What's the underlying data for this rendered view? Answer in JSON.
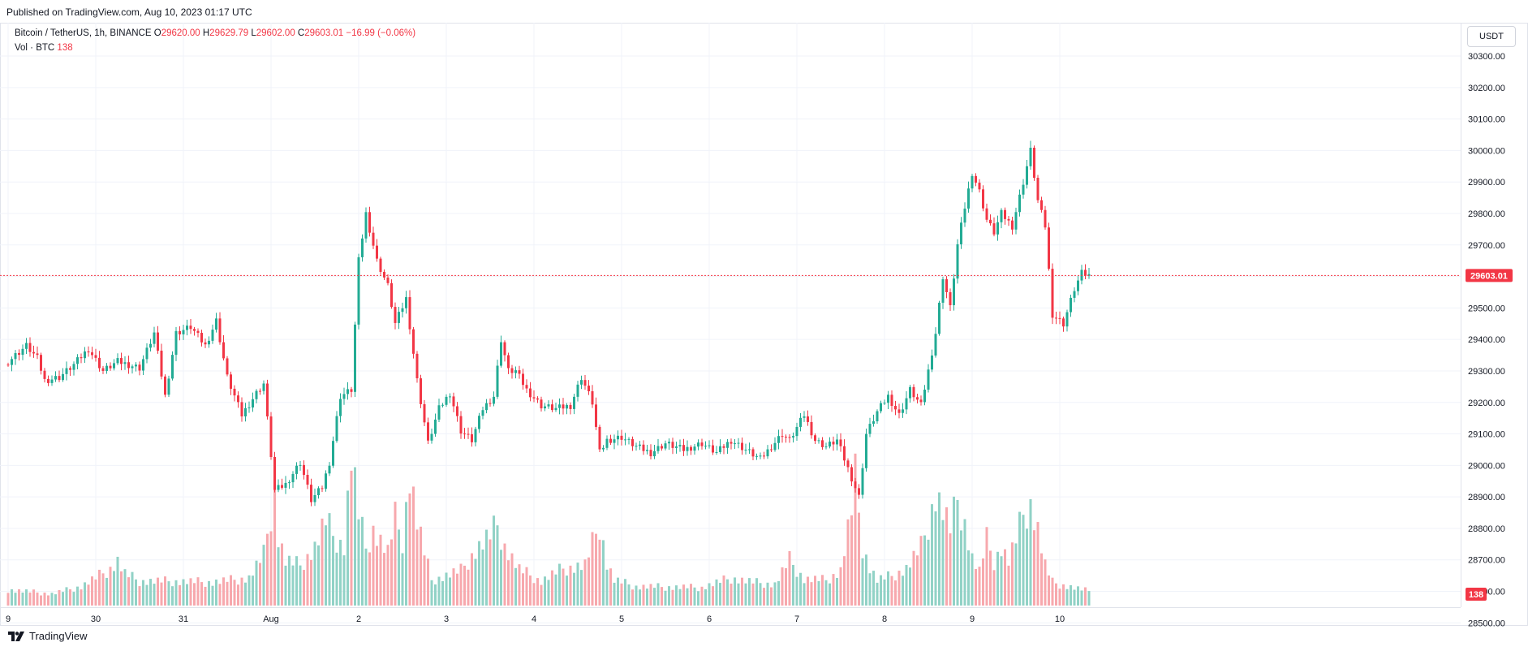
{
  "header": {
    "published": "Published on TradingView.com, Aug 10, 2023 01:17 UTC"
  },
  "legend": {
    "symbol": "Bitcoin / TetherUS, 1h, BINANCE",
    "o_label": "O",
    "o": "29620.00",
    "h_label": "H",
    "h": "29629.79",
    "l_label": "L",
    "l": "29602.00",
    "c_label": "C",
    "c": "29603.01",
    "change": "−16.99 (−0.06%)",
    "vol_label": "Vol · BTC",
    "vol_value": "138"
  },
  "currency_button": "USDT",
  "footer": {
    "brand": "TradingView"
  },
  "colors": {
    "up": "#22ab94",
    "down": "#f23645",
    "up_vol": "#91d2c6",
    "down_vol": "#f7a8ad",
    "grid": "#f0f3fa"
  },
  "chart_data": {
    "type": "candlestick",
    "symbol": "Bitcoin / TetherUS",
    "interval": "1h",
    "exchange": "BINANCE",
    "y_axis": {
      "ticks": [
        28500,
        28600,
        28700,
        28800,
        28900,
        29000,
        29100,
        29200,
        29300,
        29400,
        29500,
        29600,
        29700,
        29800,
        29900,
        30000,
        30100,
        30200,
        30300
      ],
      "tick_labels": [
        "28500.00",
        "28600.00",
        "28700.00",
        "28800.00",
        "28900.00",
        "29000.00",
        "29100.00",
        "29200.00",
        "29300.00",
        "29400.00",
        "29500.00",
        "29600.00",
        "29700.00",
        "29800.00",
        "29900.00",
        "30000.00",
        "30100.00",
        "30200.00",
        "30300.00"
      ],
      "range": [
        28440,
        30380
      ]
    },
    "x_axis": {
      "tick_labels": [
        "9",
        "30",
        "31",
        "Aug",
        "2",
        "3",
        "4",
        "5",
        "6",
        "7",
        "8",
        "9",
        "10"
      ],
      "tick_positions_bars": [
        0,
        24,
        48,
        72,
        96,
        120,
        144,
        168,
        192,
        216,
        240,
        264,
        288
      ]
    },
    "last_price_label": "29603.01",
    "last_price": 29603.01,
    "last_volume_label": "138",
    "segments": [
      [
        0,
        29330
      ],
      [
        5,
        29380
      ],
      [
        8,
        29340
      ],
      [
        10,
        29270
      ],
      [
        14,
        29280
      ],
      [
        18,
        29320
      ],
      [
        22,
        29370
      ],
      [
        26,
        29300
      ],
      [
        30,
        29330
      ],
      [
        36,
        29310
      ],
      [
        40,
        29420
      ],
      [
        43,
        29220
      ],
      [
        46,
        29420
      ],
      [
        50,
        29440
      ],
      [
        54,
        29380
      ],
      [
        57,
        29460
      ],
      [
        60,
        29280
      ],
      [
        64,
        29160
      ],
      [
        68,
        29230
      ],
      [
        70,
        29260
      ],
      [
        73,
        28920
      ],
      [
        76,
        28940
      ],
      [
        80,
        29010
      ],
      [
        83,
        28890
      ],
      [
        86,
        28930
      ],
      [
        88,
        29010
      ],
      [
        91,
        29220
      ],
      [
        94,
        29240
      ],
      [
        96,
        29650
      ],
      [
        98,
        29800
      ],
      [
        101,
        29650
      ],
      [
        104,
        29570
      ],
      [
        106,
        29450
      ],
      [
        109,
        29530
      ],
      [
        112,
        29270
      ],
      [
        115,
        29070
      ],
      [
        118,
        29180
      ],
      [
        121,
        29230
      ],
      [
        124,
        29110
      ],
      [
        127,
        29080
      ],
      [
        130,
        29180
      ],
      [
        133,
        29220
      ],
      [
        135,
        29400
      ],
      [
        137,
        29300
      ],
      [
        139,
        29300
      ],
      [
        142,
        29240
      ],
      [
        146,
        29190
      ],
      [
        150,
        29180
      ],
      [
        154,
        29190
      ],
      [
        157,
        29280
      ],
      [
        160,
        29200
      ],
      [
        162,
        29040
      ],
      [
        164,
        29080
      ],
      [
        168,
        29090
      ],
      [
        172,
        29060
      ],
      [
        176,
        29040
      ],
      [
        180,
        29070
      ],
      [
        185,
        29050
      ],
      [
        190,
        29070
      ],
      [
        194,
        29040
      ],
      [
        198,
        29080
      ],
      [
        202,
        29050
      ],
      [
        206,
        29020
      ],
      [
        209,
        29060
      ],
      [
        212,
        29100
      ],
      [
        214,
        29080
      ],
      [
        218,
        29160
      ],
      [
        221,
        29080
      ],
      [
        224,
        29060
      ],
      [
        227,
        29080
      ],
      [
        229,
        29020
      ],
      [
        231,
        28960
      ],
      [
        233,
        28900
      ],
      [
        235,
        29100
      ],
      [
        238,
        29170
      ],
      [
        241,
        29220
      ],
      [
        244,
        29160
      ],
      [
        247,
        29240
      ],
      [
        250,
        29190
      ],
      [
        252,
        29300
      ],
      [
        254,
        29420
      ],
      [
        256,
        29600
      ],
      [
        258,
        29500
      ],
      [
        260,
        29700
      ],
      [
        262,
        29820
      ],
      [
        264,
        29930
      ],
      [
        266,
        29870
      ],
      [
        268,
        29780
      ],
      [
        270,
        29740
      ],
      [
        272,
        29800
      ],
      [
        275,
        29760
      ],
      [
        278,
        29900
      ],
      [
        280,
        30000
      ],
      [
        282,
        29840
      ],
      [
        284,
        29760
      ],
      [
        286,
        29480
      ],
      [
        289,
        29450
      ],
      [
        292,
        29560
      ],
      [
        294,
        29610
      ],
      [
        296,
        29603
      ]
    ],
    "volume_segments": [
      [
        0,
        150
      ],
      [
        12,
        110
      ],
      [
        20,
        180
      ],
      [
        24,
        260
      ],
      [
        28,
        350
      ],
      [
        30,
        420
      ],
      [
        32,
        300
      ],
      [
        36,
        230
      ],
      [
        44,
        230
      ],
      [
        56,
        220
      ],
      [
        66,
        260
      ],
      [
        70,
        480
      ],
      [
        73,
        1080
      ],
      [
        74,
        650
      ],
      [
        76,
        420
      ],
      [
        80,
        380
      ],
      [
        84,
        550
      ],
      [
        87,
        800
      ],
      [
        89,
        660
      ],
      [
        92,
        560
      ],
      [
        94,
        1420
      ],
      [
        96,
        860
      ],
      [
        98,
        540
      ],
      [
        100,
        720
      ],
      [
        104,
        500
      ],
      [
        106,
        820
      ],
      [
        108,
        620
      ],
      [
        110,
        1250
      ],
      [
        112,
        800
      ],
      [
        114,
        500
      ],
      [
        116,
        240
      ],
      [
        118,
        260
      ],
      [
        124,
        330
      ],
      [
        128,
        520
      ],
      [
        132,
        660
      ],
      [
        134,
        760
      ],
      [
        136,
        560
      ],
      [
        140,
        340
      ],
      [
        146,
        230
      ],
      [
        152,
        350
      ],
      [
        158,
        380
      ],
      [
        162,
        780
      ],
      [
        164,
        400
      ],
      [
        166,
        240
      ],
      [
        172,
        180
      ],
      [
        190,
        170
      ],
      [
        198,
        260
      ],
      [
        204,
        220
      ],
      [
        210,
        200
      ],
      [
        214,
        430
      ],
      [
        218,
        250
      ],
      [
        224,
        240
      ],
      [
        228,
        330
      ],
      [
        231,
        900
      ],
      [
        232,
        1200
      ],
      [
        234,
        560
      ],
      [
        236,
        360
      ],
      [
        238,
        240
      ],
      [
        242,
        280
      ],
      [
        246,
        350
      ],
      [
        250,
        550
      ],
      [
        252,
        780
      ],
      [
        254,
        1050
      ],
      [
        256,
        900
      ],
      [
        258,
        720
      ],
      [
        260,
        1000
      ],
      [
        262,
        780
      ],
      [
        264,
        450
      ],
      [
        266,
        320
      ],
      [
        268,
        620
      ],
      [
        270,
        420
      ],
      [
        272,
        550
      ],
      [
        274,
        420
      ],
      [
        276,
        620
      ],
      [
        278,
        860
      ],
      [
        280,
        960
      ],
      [
        282,
        720
      ],
      [
        284,
        380
      ],
      [
        286,
        220
      ],
      [
        288,
        200
      ],
      [
        294,
        150
      ],
      [
        296,
        138
      ]
    ]
  }
}
